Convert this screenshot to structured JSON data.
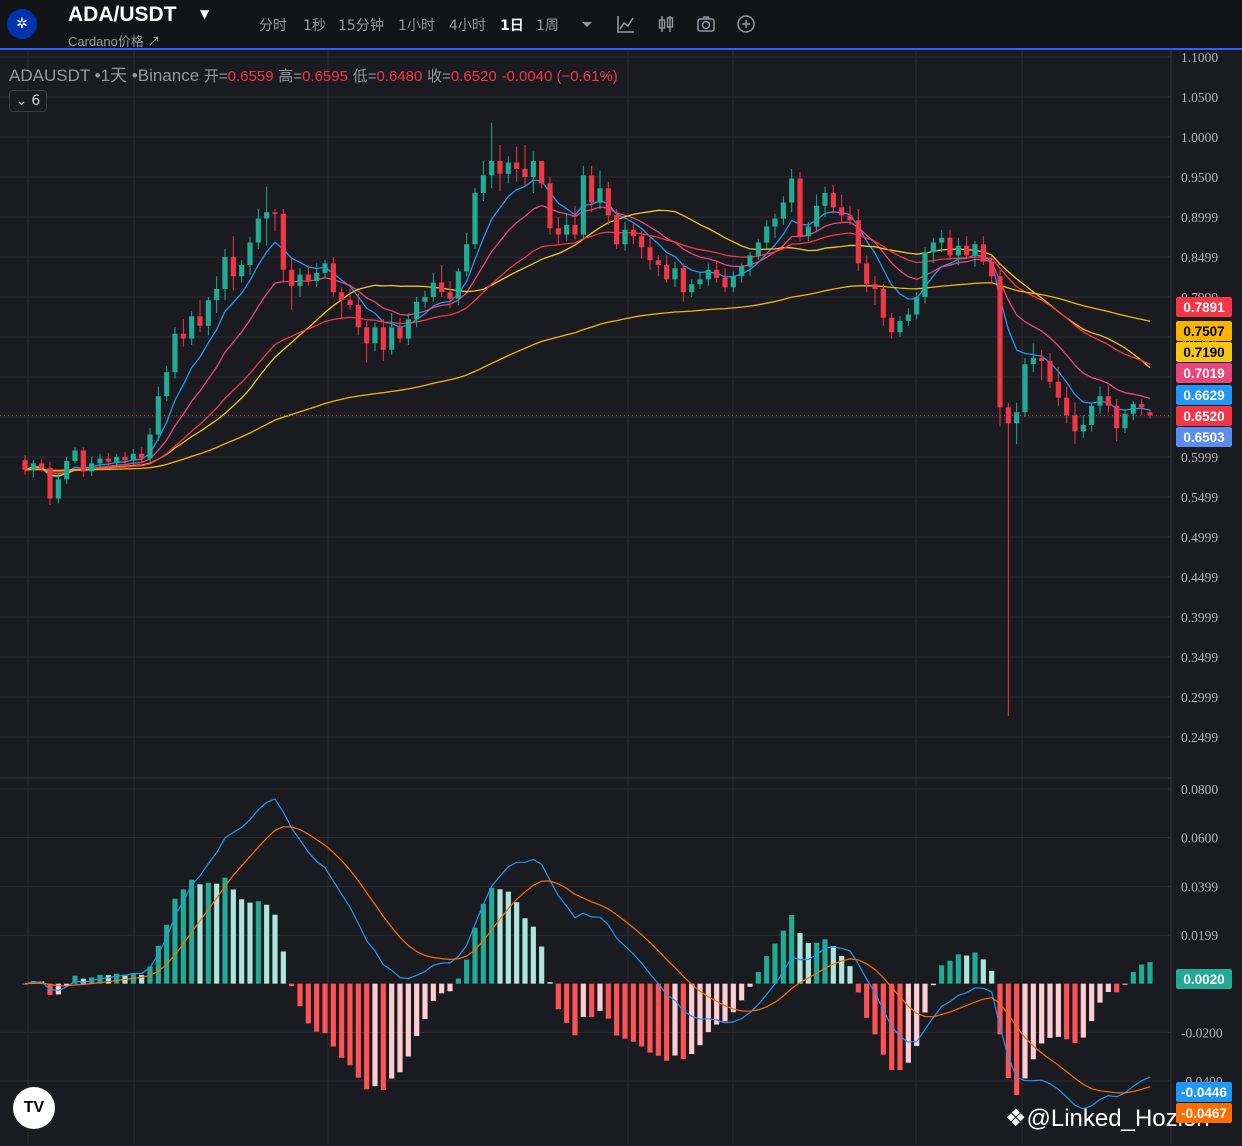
{
  "header": {
    "symbol": "ADA/USDT",
    "subtitle": "Cardano价格 ↗",
    "timeframes": [
      "分时",
      "1秒",
      "15分钟",
      "1小时",
      "4小时",
      "1日",
      "1周"
    ],
    "active_timeframe": "1日",
    "toolbar_icons": [
      "dropdown-caret-icon",
      "indicator-icon",
      "candle-style-icon",
      "camera-icon",
      "add-icon"
    ]
  },
  "legend": {
    "symbol_line": "ADAUSDT •1天 •Binance",
    "open_label": "开=",
    "open": "0.6559",
    "high_label": "高=",
    "high": "0.6595",
    "low_label": "低=",
    "low": "0.6480",
    "close_label": "收=",
    "close": "0.6520",
    "change": "-0.0040 (−0.61%)",
    "collapsed_count": "6"
  },
  "price_axis": [
    "1.1000",
    "1.0500",
    "1.0000",
    "0.9500",
    "0.8999",
    "0.8499",
    "0.7999",
    "0.7499",
    "0.6999",
    "0.6499",
    "0.5999",
    "0.5499",
    "0.4999",
    "0.4499",
    "0.3999",
    "0.3499",
    "0.2999",
    "0.2499"
  ],
  "macd_axis": [
    "0.0800",
    "0.0600",
    "0.0399",
    "0.0199",
    "-0.0200",
    "-0.0400"
  ],
  "price_tags": [
    {
      "value": "0.7891",
      "color": "#f23645",
      "text": "#ffffff"
    },
    {
      "value": "0.7507",
      "color": "#f7b500",
      "text": "#000000"
    },
    {
      "value": "0.7190",
      "color": "#f5c518",
      "text": "#000000"
    },
    {
      "value": "0.7019",
      "color": "#e8457a",
      "text": "#ffffff"
    },
    {
      "value": "0.6629",
      "color": "#2196f3",
      "text": "#ffffff"
    },
    {
      "value": "0.6520",
      "color": "#f23645",
      "text": "#ffffff"
    },
    {
      "value": "0.6503",
      "color": "#5b8def",
      "text": "#ffffff"
    }
  ],
  "macd_tags": [
    {
      "value": "0.0020",
      "color": "#22ab94",
      "text": "#ffffff"
    },
    {
      "value": "-0.0446",
      "color": "#2196f3",
      "text": "#ffffff"
    },
    {
      "value": "-0.0467",
      "color": "#ff6d00",
      "text": "#ffffff"
    }
  ],
  "watermark": "@Linked_Hozion",
  "colors": {
    "up": "#22ab94",
    "down": "#f23645",
    "bg": "#1a1b20",
    "grid": "#2a2d35"
  },
  "chart_data": {
    "type": "candlestick",
    "y_range": [
      0.22,
      1.115
    ],
    "ohlc": [
      [
        0.596,
        0.602,
        0.578,
        0.584
      ],
      [
        0.584,
        0.596,
        0.574,
        0.592
      ],
      [
        0.592,
        0.598,
        0.582,
        0.586
      ],
      [
        0.586,
        0.594,
        0.54,
        0.548
      ],
      [
        0.548,
        0.58,
        0.542,
        0.572
      ],
      [
        0.572,
        0.6,
        0.566,
        0.595
      ],
      [
        0.595,
        0.612,
        0.592,
        0.608
      ],
      [
        0.608,
        0.612,
        0.575,
        0.582
      ],
      [
        0.582,
        0.6,
        0.576,
        0.592
      ],
      [
        0.592,
        0.604,
        0.585,
        0.598
      ],
      [
        0.598,
        0.605,
        0.586,
        0.594
      ],
      [
        0.594,
        0.604,
        0.588,
        0.6
      ],
      [
        0.6,
        0.606,
        0.589,
        0.596
      ],
      [
        0.596,
        0.61,
        0.59,
        0.604
      ],
      [
        0.604,
        0.612,
        0.592,
        0.598
      ],
      [
        0.598,
        0.636,
        0.594,
        0.628
      ],
      [
        0.628,
        0.688,
        0.62,
        0.676
      ],
      [
        0.676,
        0.714,
        0.67,
        0.706
      ],
      [
        0.706,
        0.762,
        0.698,
        0.754
      ],
      [
        0.754,
        0.772,
        0.738,
        0.748
      ],
      [
        0.748,
        0.782,
        0.74,
        0.776
      ],
      [
        0.776,
        0.796,
        0.756,
        0.764
      ],
      [
        0.764,
        0.8,
        0.752,
        0.796
      ],
      [
        0.796,
        0.826,
        0.78,
        0.81
      ],
      [
        0.81,
        0.86,
        0.796,
        0.85
      ],
      [
        0.85,
        0.876,
        0.808,
        0.826
      ],
      [
        0.826,
        0.846,
        0.818,
        0.84
      ],
      [
        0.84,
        0.875,
        0.828,
        0.868
      ],
      [
        0.868,
        0.91,
        0.86,
        0.898
      ],
      [
        0.898,
        0.938,
        0.864,
        0.906
      ],
      [
        0.906,
        0.91,
        0.882,
        0.904
      ],
      [
        0.904,
        0.91,
        0.818,
        0.834
      ],
      [
        0.834,
        0.848,
        0.784,
        0.814
      ],
      [
        0.814,
        0.836,
        0.8,
        0.828
      ],
      [
        0.828,
        0.84,
        0.814,
        0.82
      ],
      [
        0.82,
        0.842,
        0.812,
        0.83
      ],
      [
        0.83,
        0.846,
        0.824,
        0.842
      ],
      [
        0.842,
        0.85,
        0.8,
        0.806
      ],
      [
        0.806,
        0.812,
        0.774,
        0.796
      ],
      [
        0.796,
        0.81,
        0.784,
        0.79
      ],
      [
        0.79,
        0.804,
        0.752,
        0.762
      ],
      [
        0.762,
        0.77,
        0.718,
        0.742
      ],
      [
        0.742,
        0.768,
        0.732,
        0.762
      ],
      [
        0.762,
        0.772,
        0.72,
        0.734
      ],
      [
        0.734,
        0.78,
        0.728,
        0.762
      ],
      [
        0.762,
        0.774,
        0.742,
        0.748
      ],
      [
        0.748,
        0.78,
        0.74,
        0.772
      ],
      [
        0.772,
        0.8,
        0.762,
        0.794
      ],
      [
        0.794,
        0.808,
        0.786,
        0.8
      ],
      [
        0.8,
        0.83,
        0.794,
        0.818
      ],
      [
        0.818,
        0.84,
        0.8,
        0.806
      ],
      [
        0.806,
        0.82,
        0.786,
        0.798
      ],
      [
        0.798,
        0.836,
        0.79,
        0.832
      ],
      [
        0.832,
        0.88,
        0.826,
        0.866
      ],
      [
        0.866,
        0.936,
        0.86,
        0.93
      ],
      [
        0.93,
        0.97,
        0.92,
        0.952
      ],
      [
        0.952,
        1.018,
        0.936,
        0.97
      ],
      [
        0.97,
        0.99,
        0.932,
        0.954
      ],
      [
        0.954,
        0.976,
        0.942,
        0.968
      ],
      [
        0.968,
        0.988,
        0.944,
        0.96
      ],
      [
        0.96,
        0.99,
        0.938,
        0.95
      ],
      [
        0.95,
        0.982,
        0.93,
        0.97
      ],
      [
        0.97,
        0.97,
        0.936,
        0.942
      ],
      [
        0.942,
        0.95,
        0.878,
        0.886
      ],
      [
        0.886,
        0.9,
        0.866,
        0.878
      ],
      [
        0.878,
        0.904,
        0.87,
        0.89
      ],
      [
        0.89,
        0.914,
        0.872,
        0.878
      ],
      [
        0.878,
        0.964,
        0.872,
        0.952
      ],
      [
        0.952,
        0.964,
        0.906,
        0.918
      ],
      [
        0.918,
        0.958,
        0.91,
        0.936
      ],
      [
        0.936,
        0.944,
        0.89,
        0.902
      ],
      [
        0.902,
        0.91,
        0.86,
        0.866
      ],
      [
        0.866,
        0.894,
        0.858,
        0.884
      ],
      [
        0.884,
        0.892,
        0.866,
        0.876
      ],
      [
        0.876,
        0.882,
        0.848,
        0.862
      ],
      [
        0.862,
        0.874,
        0.834,
        0.846
      ],
      [
        0.846,
        0.852,
        0.826,
        0.84
      ],
      [
        0.84,
        0.852,
        0.818,
        0.822
      ],
      [
        0.822,
        0.844,
        0.812,
        0.836
      ],
      [
        0.836,
        0.842,
        0.794,
        0.806
      ],
      [
        0.806,
        0.822,
        0.8,
        0.816
      ],
      [
        0.816,
        0.83,
        0.81,
        0.822
      ],
      [
        0.822,
        0.842,
        0.814,
        0.834
      ],
      [
        0.834,
        0.846,
        0.818,
        0.824
      ],
      [
        0.824,
        0.836,
        0.806,
        0.812
      ],
      [
        0.812,
        0.832,
        0.806,
        0.826
      ],
      [
        0.826,
        0.842,
        0.818,
        0.838
      ],
      [
        0.838,
        0.856,
        0.826,
        0.852
      ],
      [
        0.852,
        0.872,
        0.846,
        0.868
      ],
      [
        0.868,
        0.896,
        0.86,
        0.888
      ],
      [
        0.888,
        0.904,
        0.874,
        0.898
      ],
      [
        0.898,
        0.926,
        0.89,
        0.918
      ],
      [
        0.918,
        0.96,
        0.906,
        0.948
      ],
      [
        0.948,
        0.956,
        0.87,
        0.876
      ],
      [
        0.876,
        0.894,
        0.87,
        0.888
      ],
      [
        0.888,
        0.928,
        0.882,
        0.914
      ],
      [
        0.914,
        0.938,
        0.9,
        0.93
      ],
      [
        0.93,
        0.94,
        0.904,
        0.912
      ],
      [
        0.912,
        0.928,
        0.894,
        0.902
      ],
      [
        0.902,
        0.914,
        0.89,
        0.896
      ],
      [
        0.896,
        0.91,
        0.832,
        0.842
      ],
      [
        0.842,
        0.852,
        0.806,
        0.816
      ],
      [
        0.816,
        0.826,
        0.79,
        0.81
      ],
      [
        0.81,
        0.816,
        0.764,
        0.774
      ],
      [
        0.774,
        0.78,
        0.748,
        0.756
      ],
      [
        0.756,
        0.776,
        0.75,
        0.77
      ],
      [
        0.77,
        0.786,
        0.764,
        0.778
      ],
      [
        0.778,
        0.806,
        0.772,
        0.8
      ],
      [
        0.8,
        0.862,
        0.792,
        0.856
      ],
      [
        0.856,
        0.874,
        0.842,
        0.868
      ],
      [
        0.868,
        0.884,
        0.856,
        0.874
      ],
      [
        0.874,
        0.884,
        0.846,
        0.852
      ],
      [
        0.852,
        0.874,
        0.84,
        0.864
      ],
      [
        0.864,
        0.876,
        0.848,
        0.852
      ],
      [
        0.852,
        0.87,
        0.838,
        0.866
      ],
      [
        0.866,
        0.876,
        0.84,
        0.844
      ],
      [
        0.844,
        0.852,
        0.818,
        0.826
      ],
      [
        0.826,
        0.834,
        0.638,
        0.662
      ],
      [
        0.662,
        0.668,
        0.276,
        0.642
      ],
      [
        0.642,
        0.668,
        0.616,
        0.656
      ],
      [
        0.656,
        0.724,
        0.65,
        0.716
      ],
      [
        0.716,
        0.742,
        0.706,
        0.724
      ],
      [
        0.724,
        0.734,
        0.696,
        0.72
      ],
      [
        0.72,
        0.73,
        0.686,
        0.694
      ],
      [
        0.694,
        0.712,
        0.664,
        0.674
      ],
      [
        0.674,
        0.688,
        0.642,
        0.652
      ],
      [
        0.652,
        0.668,
        0.616,
        0.632
      ],
      [
        0.632,
        0.652,
        0.624,
        0.64
      ],
      [
        0.64,
        0.668,
        0.632,
        0.664
      ],
      [
        0.664,
        0.688,
        0.654,
        0.676
      ],
      [
        0.676,
        0.69,
        0.656,
        0.664
      ],
      [
        0.664,
        0.672,
        0.62,
        0.636
      ],
      [
        0.636,
        0.66,
        0.63,
        0.654
      ],
      [
        0.654,
        0.67,
        0.646,
        0.666
      ],
      [
        0.666,
        0.672,
        0.652,
        0.662
      ],
      [
        0.6559,
        0.6595,
        0.648,
        0.652
      ]
    ]
  }
}
